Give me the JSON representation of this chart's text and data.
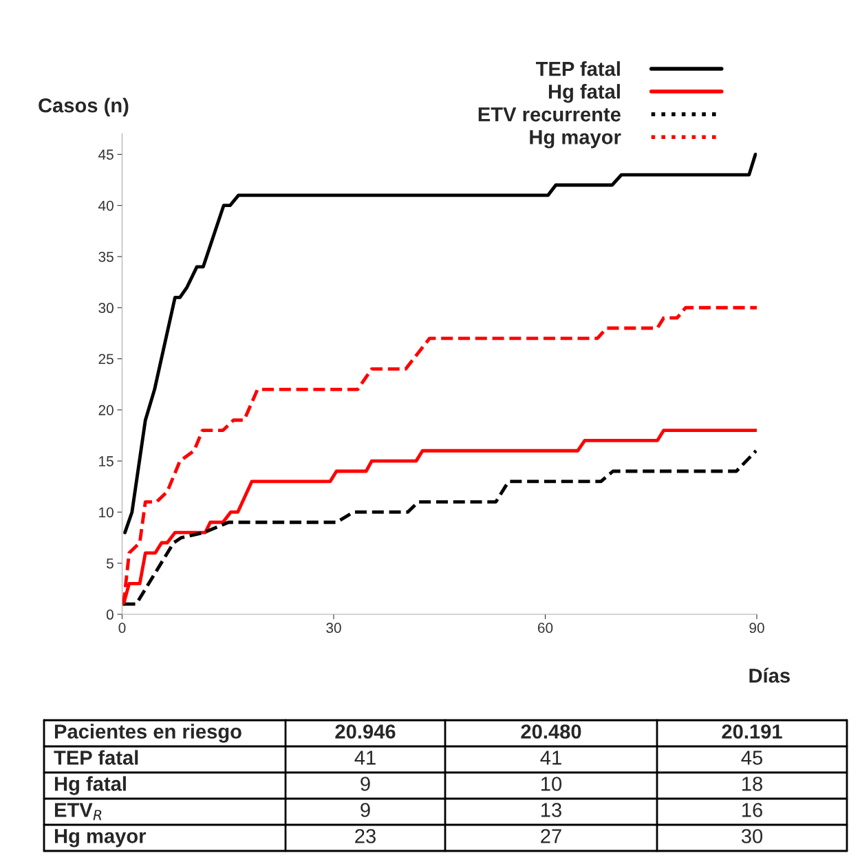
{
  "chart_data": {
    "type": "line",
    "xlabel": "Días",
    "ylabel": "Casos (n)",
    "xlim": [
      0,
      90
    ],
    "ylim": [
      0,
      47
    ],
    "xticks": [
      0,
      30,
      60,
      90
    ],
    "yticks": [
      0,
      5,
      10,
      15,
      20,
      25,
      30,
      35,
      40,
      45
    ],
    "grid": false,
    "legend": "top right",
    "marker": "none",
    "series": [
      {
        "name": "TEP fatal",
        "color": "#000000",
        "line_style": "solid",
        "x": [
          0.4,
          1.4,
          3.3,
          4.6,
          7.5,
          8.2,
          9.2,
          10.6,
          11.5,
          14.4,
          15.3,
          16.5,
          60.4,
          61.5,
          69.5,
          70.8,
          88.9,
          89.8
        ],
        "values": [
          8,
          10,
          19,
          22,
          31,
          31,
          32,
          34,
          34,
          40,
          40,
          41,
          41,
          42,
          42,
          43,
          43,
          45
        ]
      },
      {
        "name": "Hg fatal",
        "color": "#ff0000",
        "line_style": "solid",
        "x": [
          0.2,
          1.0,
          2.5,
          3.3,
          4.7,
          5.6,
          6.4,
          7.5,
          11.8,
          12.5,
          14.3,
          15.4,
          16.4,
          18.4,
          29.5,
          30.4,
          34.6,
          35.4,
          41.7,
          42.6,
          64.6,
          65.6,
          75.9,
          76.8,
          89.9
        ],
        "values": [
          1,
          3,
          3,
          6,
          6,
          7,
          7,
          8,
          8,
          9,
          9,
          10,
          10,
          13,
          13,
          14,
          14,
          15,
          15,
          16,
          16,
          17,
          17,
          18,
          18
        ]
      },
      {
        "name": "ETV recurrente",
        "color": "#000000",
        "line_style": "dashed",
        "x": [
          0.2,
          2.0,
          7.3,
          8.4,
          11.6,
          15.1,
          30.4,
          32.8,
          40.5,
          42.0,
          53.0,
          54.8,
          67.9,
          69.6,
          87.1,
          89.9
        ],
        "values": [
          1,
          1,
          7,
          7.5,
          8,
          9,
          9,
          10,
          10,
          11,
          11,
          13,
          13,
          14,
          14,
          16
        ]
      },
      {
        "name": "Hg mayor",
        "color": "#ff0000",
        "line_style": "dashed",
        "x": [
          0.2,
          1.0,
          2.5,
          3.3,
          4.9,
          6.4,
          8.2,
          10.2,
          11.4,
          14.3,
          15.8,
          17.3,
          19.2,
          33.4,
          35.4,
          40.2,
          43.6,
          67.4,
          68.7,
          75.9,
          76.8,
          78.7,
          79.9,
          90.0
        ],
        "values": [
          1,
          6,
          7,
          11,
          11,
          12,
          15,
          16,
          18,
          18,
          19,
          19,
          22,
          22,
          24,
          24,
          27,
          27,
          28,
          28,
          29,
          29,
          30,
          30
        ]
      }
    ],
    "annotations": [
      "Pacientes en riesgo",
      "20.946",
      "20.480",
      "20.191",
      "TEP fatal",
      "41",
      "41",
      "45",
      "Hg fatal",
      "9",
      "10",
      "18",
      "ETV$_{R}$",
      "9",
      "13",
      "16",
      "Hg mayor",
      "23",
      "27",
      "30"
    ]
  }
}
